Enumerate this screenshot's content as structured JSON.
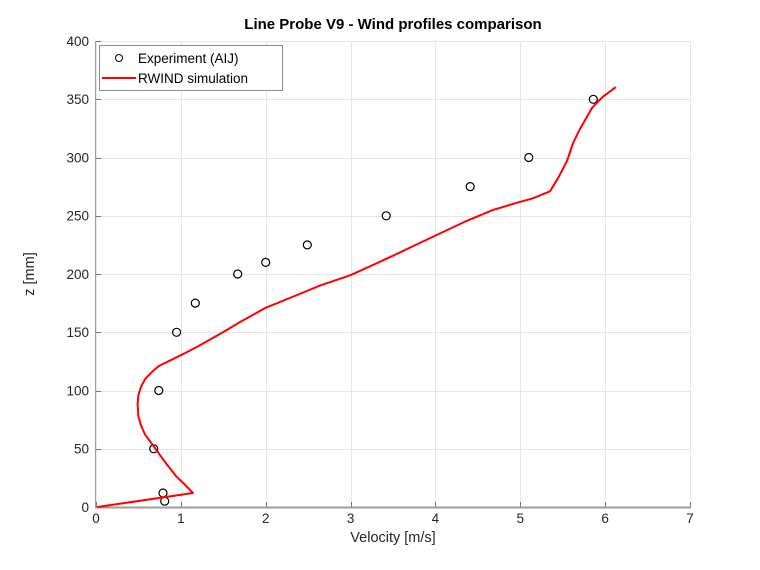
{
  "chart_data": {
    "type": "line+scatter",
    "title": "Line Probe V9 - Wind profiles comparison",
    "xlabel": "Velocity [m/s]",
    "ylabel": "z [mm]",
    "xlim": [
      0,
      7
    ],
    "ylim": [
      0,
      400
    ],
    "xticks": [
      0,
      1,
      2,
      3,
      4,
      5,
      6,
      7
    ],
    "yticks": [
      0,
      50,
      100,
      150,
      200,
      250,
      300,
      350,
      400
    ],
    "grid": true,
    "legend_position": "top-left",
    "series": [
      {
        "name": "Experiment (AIJ)",
        "type": "scatter",
        "marker": "open-circle",
        "color": "#000000",
        "points": [
          [
            0.81,
            5
          ],
          [
            0.79,
            12
          ],
          [
            0.68,
            50
          ],
          [
            0.74,
            100
          ],
          [
            0.95,
            150
          ],
          [
            1.17,
            175
          ],
          [
            1.67,
            200
          ],
          [
            2.0,
            210
          ],
          [
            2.49,
            225
          ],
          [
            3.42,
            250
          ],
          [
            4.41,
            275
          ],
          [
            5.1,
            300
          ],
          [
            5.86,
            350
          ]
        ]
      },
      {
        "name": "RWIND simulation",
        "type": "line",
        "color": "#ff0000",
        "points": [
          [
            0.02,
            0
          ],
          [
            1.143,
            12
          ],
          [
            1.05,
            19
          ],
          [
            0.95,
            26
          ],
          [
            0.83,
            37
          ],
          [
            0.73,
            47
          ],
          [
            0.65,
            55
          ],
          [
            0.58,
            62
          ],
          [
            0.53,
            70
          ],
          [
            0.5,
            78
          ],
          [
            0.49,
            88
          ],
          [
            0.5,
            96
          ],
          [
            0.53,
            103
          ],
          [
            0.58,
            110
          ],
          [
            0.66,
            116
          ],
          [
            0.74,
            121
          ],
          [
            0.88,
            126
          ],
          [
            1.02,
            131
          ],
          [
            1.18,
            137
          ],
          [
            1.35,
            144
          ],
          [
            1.52,
            151
          ],
          [
            1.68,
            158
          ],
          [
            2.0,
            171
          ],
          [
            2.37,
            182
          ],
          [
            2.64,
            190
          ],
          [
            3.0,
            199
          ],
          [
            3.45,
            214
          ],
          [
            4.0,
            233
          ],
          [
            4.35,
            245
          ],
          [
            4.68,
            255
          ],
          [
            5.0,
            262
          ],
          [
            5.15,
            265
          ],
          [
            5.35,
            271
          ],
          [
            5.45,
            283
          ],
          [
            5.55,
            297
          ],
          [
            5.62,
            312
          ],
          [
            5.7,
            324
          ],
          [
            5.85,
            343
          ],
          [
            5.97,
            352
          ],
          [
            6.12,
            360
          ]
        ]
      }
    ],
    "theme": {
      "background": "#ffffff",
      "grid_color": "#e6e6e6",
      "axis_color": "#9e9e9e",
      "tick_color": "#737373",
      "text_color": "#262626",
      "legend_border": "#8c8c8c"
    }
  }
}
